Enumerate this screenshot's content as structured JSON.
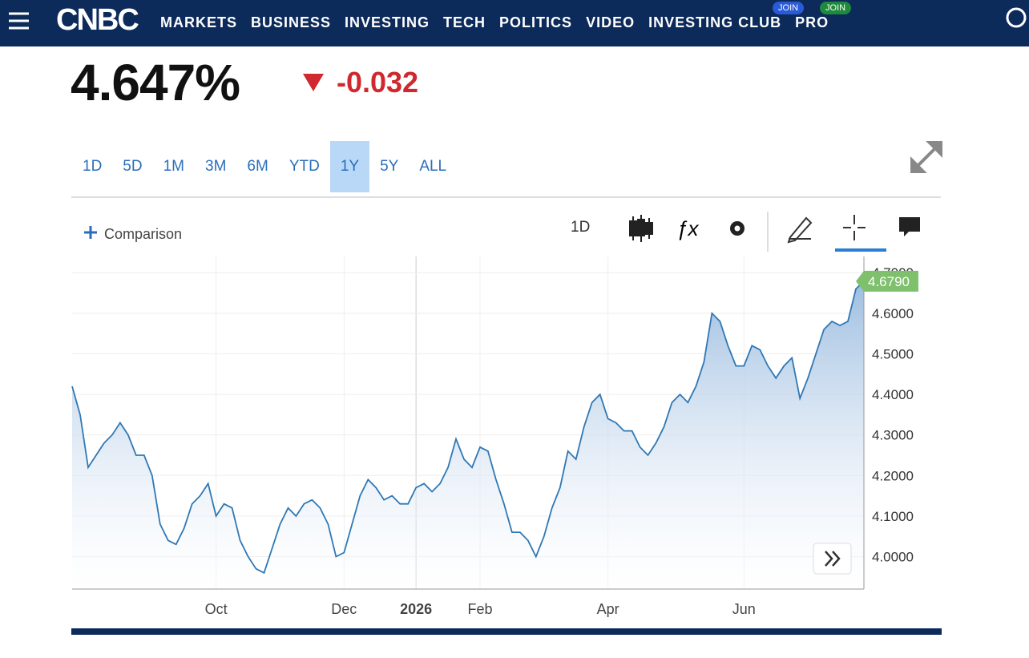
{
  "header": {
    "logo": "CNBC",
    "nav": [
      {
        "label": "MARKETS"
      },
      {
        "label": "BUSINESS"
      },
      {
        "label": "INVESTING"
      },
      {
        "label": "TECH"
      },
      {
        "label": "POLITICS"
      },
      {
        "label": "VIDEO"
      },
      {
        "label": "INVESTING CLUB",
        "badge": "JOIN",
        "badge_color": "#2a5bd7"
      },
      {
        "label": "PRO",
        "badge": "JOIN",
        "badge_color": "#1e8a3c"
      }
    ]
  },
  "quote": {
    "price": "4.647%",
    "change": "-0.032"
  },
  "ranges": {
    "items": [
      "1D",
      "5D",
      "1M",
      "3M",
      "6M",
      "YTD",
      "1Y",
      "5Y",
      "ALL"
    ],
    "active": "1Y"
  },
  "toolbar": {
    "comparison": "Comparison",
    "interval": "1D"
  },
  "chart_data": {
    "type": "line",
    "color": "#2f78b4",
    "categories": [
      "",
      "",
      "",
      "",
      "",
      "",
      "",
      "",
      "",
      "",
      "",
      "",
      "",
      "",
      "",
      "",
      "",
      "",
      "Oct",
      "",
      "",
      "",
      "",
      "",
      "",
      "",
      "",
      "",
      "",
      "",
      "",
      "",
      "",
      "",
      "Dec",
      "",
      "",
      "",
      "",
      "",
      "",
      "",
      "",
      "2026",
      "",
      "",
      "",
      "",
      "",
      "",
      "",
      "Feb",
      "",
      "",
      "",
      "",
      "",
      "",
      "",
      "",
      "",
      "",
      "",
      "",
      "",
      "",
      "",
      "Apr",
      "",
      "",
      "",
      "",
      "",
      "",
      "",
      "",
      "",
      "",
      "",
      "",
      "",
      "",
      "",
      "",
      "Jun",
      "",
      "",
      "",
      "",
      "",
      "",
      "",
      "",
      "",
      "",
      "",
      "",
      "",
      "",
      ""
    ],
    "values": [
      4.42,
      4.35,
      4.22,
      4.25,
      4.28,
      4.3,
      4.33,
      4.3,
      4.25,
      4.25,
      4.2,
      4.08,
      4.04,
      4.03,
      4.07,
      4.13,
      4.15,
      4.18,
      4.1,
      4.13,
      4.12,
      4.04,
      4.0,
      3.97,
      3.96,
      4.02,
      4.08,
      4.12,
      4.1,
      4.13,
      4.14,
      4.12,
      4.08,
      4.0,
      4.01,
      4.08,
      4.15,
      4.19,
      4.17,
      4.14,
      4.15,
      4.13,
      4.13,
      4.17,
      4.18,
      4.16,
      4.18,
      4.22,
      4.29,
      4.24,
      4.22,
      4.27,
      4.26,
      4.19,
      4.13,
      4.06,
      4.06,
      4.04,
      4.0,
      4.05,
      4.12,
      4.17,
      4.26,
      4.24,
      4.32,
      4.38,
      4.4,
      4.34,
      4.33,
      4.31,
      4.31,
      4.27,
      4.25,
      4.28,
      4.32,
      4.38,
      4.4,
      4.38,
      4.42,
      4.48,
      4.6,
      4.58,
      4.52,
      4.47,
      4.47,
      4.52,
      4.51,
      4.47,
      4.44,
      4.47,
      4.49,
      4.39,
      4.44,
      4.5,
      4.56,
      4.58,
      4.57,
      4.58,
      4.66,
      4.679
    ],
    "last_value_label": "4.6790",
    "ylim": [
      3.92,
      4.74
    ],
    "yticks": [
      {
        "value": 4.0,
        "label": "4.0000"
      },
      {
        "value": 4.1,
        "label": "4.1000"
      },
      {
        "value": 4.2,
        "label": "4.2000"
      },
      {
        "value": 4.3,
        "label": "4.3000"
      },
      {
        "value": 4.4,
        "label": "4.4000"
      },
      {
        "value": 4.5,
        "label": "4.5000"
      },
      {
        "value": 4.6,
        "label": "4.6000"
      },
      {
        "value": 4.7,
        "label": "4.7000"
      }
    ],
    "grid": true
  }
}
